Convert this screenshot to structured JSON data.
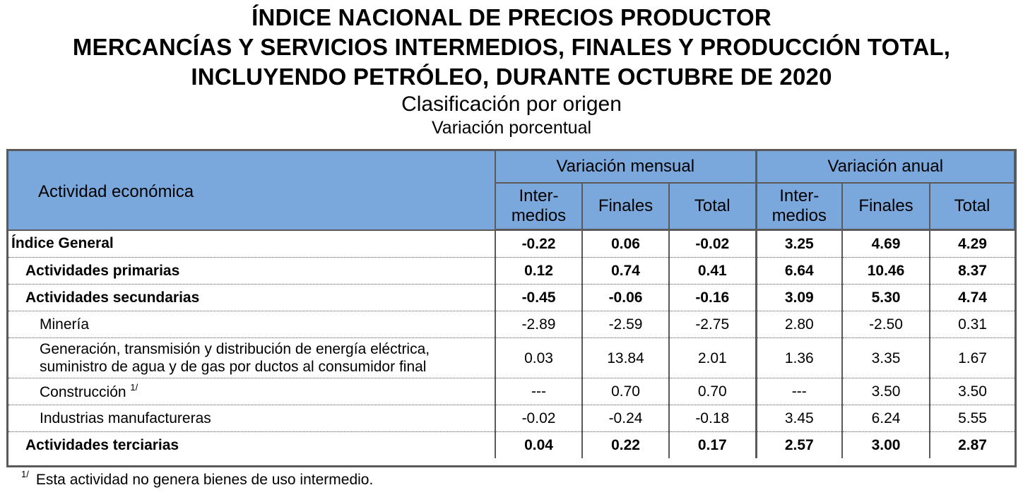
{
  "title": {
    "line1": "ÍNDICE NACIONAL DE PRECIOS PRODUCTOR",
    "line2": "MERCANCÍAS Y SERVICIOS INTERMEDIOS, FINALES Y PRODUCCIÓN TOTAL,",
    "line3": "INCLUYENDO PETRÓLEO, DURANTE OCTUBRE DE 2020",
    "subtitle": "Clasificación por origen",
    "subtitle2": "Variación porcentual"
  },
  "table": {
    "header_activity": "Actividad económica",
    "group_monthly": "Variación mensual",
    "group_annual": "Variación anual",
    "col_intermedios_1": "Inter-",
    "col_intermedios_2": "medios",
    "col_finales": "Finales",
    "col_total": "Total",
    "rows": [
      {
        "label": "Índice General",
        "values": [
          "-0.22",
          "0.06",
          "-0.02",
          "3.25",
          "4.69",
          "4.29"
        ]
      },
      {
        "label": "Actividades primarias",
        "values": [
          "0.12",
          "0.74",
          "0.41",
          "6.64",
          "10.46",
          "8.37"
        ]
      },
      {
        "label": "Actividades secundarias",
        "values": [
          "-0.45",
          "-0.06",
          "-0.16",
          "3.09",
          "5.30",
          "4.74"
        ]
      },
      {
        "label": "Minería",
        "values": [
          "-2.89",
          "-2.59",
          "-2.75",
          "2.80",
          "-2.50",
          "0.31"
        ]
      },
      {
        "label_line1": "Generación, transmisión y distribución de energía eléctrica,",
        "label_line2": "suministro de agua y de gas por ductos al consumidor final",
        "values": [
          "0.03",
          "13.84",
          "2.01",
          "1.36",
          "3.35",
          "1.67"
        ]
      },
      {
        "label": "Construcción",
        "note": "1/",
        "values": [
          "---",
          "0.70",
          "0.70",
          "---",
          "3.50",
          "3.50"
        ]
      },
      {
        "label": "Industrias manufactureras",
        "values": [
          "-0.02",
          "-0.24",
          "-0.18",
          "3.45",
          "6.24",
          "5.55"
        ]
      },
      {
        "label": "Actividades terciarias",
        "values": [
          "0.04",
          "0.22",
          "0.17",
          "2.57",
          "3.00",
          "2.87"
        ]
      }
    ]
  },
  "footnote": {
    "mark": "1/",
    "text": "Esta actividad no genera bienes de uso intermedio."
  }
}
